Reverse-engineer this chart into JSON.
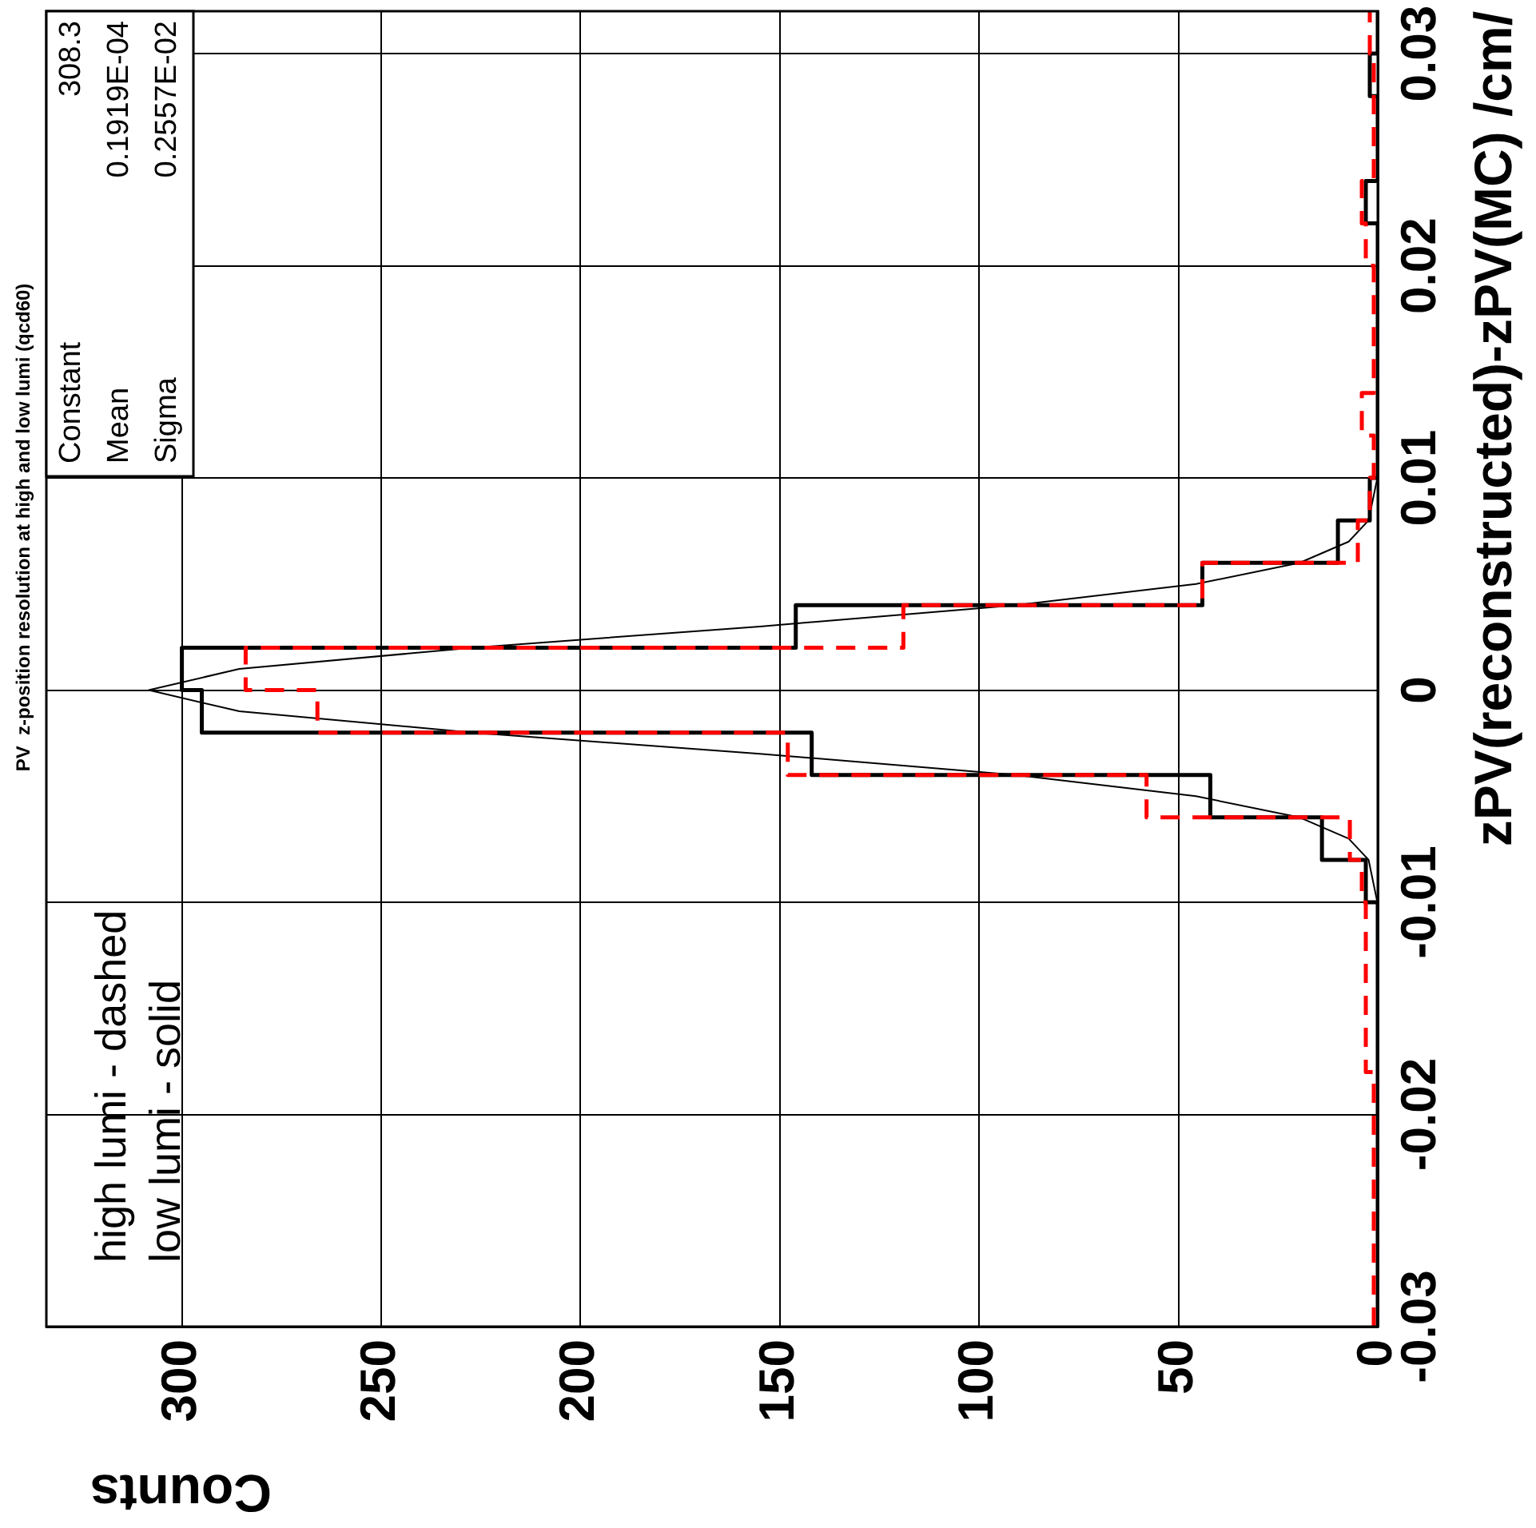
{
  "chart_data": {
    "type": "histogram",
    "orientation": "horizontal",
    "title": "PV  z-position resolution at high and low lumi (qcd60)",
    "xlabel": "Counts",
    "ylabel": "zPV(reconstructed)-zPV(MC) /cm/",
    "bins": [
      -0.03,
      -0.028,
      -0.026,
      -0.024,
      -0.022,
      -0.02,
      -0.018,
      -0.016,
      -0.014,
      -0.012,
      -0.01,
      -0.008,
      -0.006,
      -0.004,
      -0.002,
      0,
      0.002,
      0.004,
      0.006,
      0.008,
      0.01,
      0.012,
      0.014,
      0.016,
      0.018,
      0.02,
      0.022,
      0.024,
      0.026,
      0.028,
      0.03,
      0.032
    ],
    "series": [
      {
        "color": "#ff0000",
        "line_style": "dashed",
        "values": [
          1,
          1,
          1,
          1,
          1,
          1,
          3,
          3,
          3,
          3,
          4,
          7,
          58,
          148,
          266,
          284,
          119,
          44,
          5,
          2,
          1,
          4,
          1,
          1,
          1,
          3,
          4,
          1,
          1,
          1,
          2
        ]
      },
      {
        "color": "#000000",
        "line_style": "solid",
        "values": [
          0,
          0,
          0,
          0,
          0,
          0,
          0,
          0,
          0,
          0,
          3,
          14,
          42,
          142,
          295,
          300,
          146,
          44,
          10,
          2,
          0,
          0,
          0,
          0,
          0,
          0,
          3,
          0,
          0,
          2,
          0
        ]
      },
      {
        "type": "line",
        "color": "#000000",
        "x": [
          -0.01,
          -0.008,
          -0.007,
          -0.006,
          -0.005,
          -0.004,
          -0.003,
          -0.002,
          -0.001,
          0,
          0.001,
          0.002,
          0.003,
          0.004,
          0.005,
          0.006,
          0.007,
          0.008,
          0.01
        ],
        "values": [
          0.1,
          2.3,
          7.3,
          19.6,
          45.6,
          90.8,
          155,
          227,
          285.6,
          308.3,
          285.6,
          227,
          155,
          90.8,
          45.6,
          19.6,
          7.3,
          2.3,
          0.1
        ]
      }
    ],
    "xlim": [
      334,
      0
    ],
    "xticks": [
      300,
      250,
      200,
      150,
      100,
      50,
      0
    ],
    "ylim": [
      -0.03,
      0.032
    ],
    "yticks": [
      -0.03,
      -0.02,
      -0.01,
      0,
      0.01,
      0.02,
      0.03
    ],
    "grid": true,
    "legend": false,
    "annotations": [
      "Constant",
      "308.3",
      "Mean",
      "0.1919E-04",
      "Sigma",
      "0.2557E-02",
      "high lumi - dashed",
      "low lumi - solid"
    ]
  }
}
